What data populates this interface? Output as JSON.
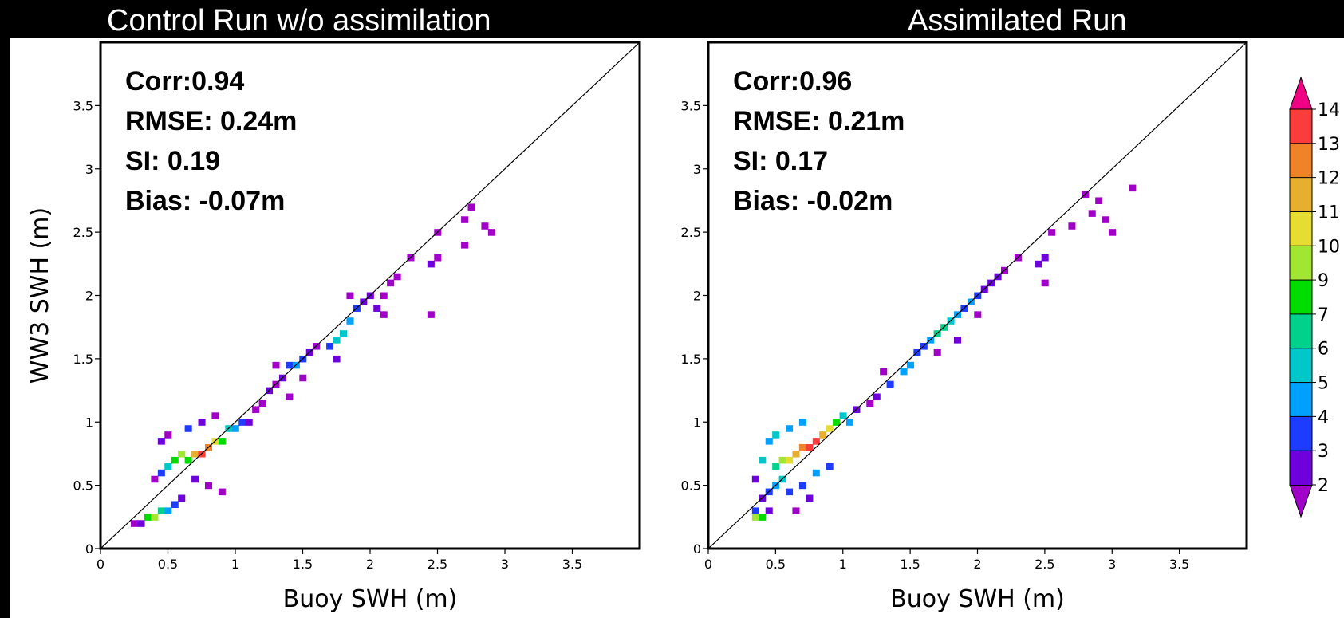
{
  "chart_data": [
    {
      "type": "heatmap",
      "title": "Control Run w/o assimilation",
      "xlabel": "Buoy SWH (m)",
      "ylabel": "WW3 SWH (m)",
      "xlim": [
        0,
        4
      ],
      "ylim": [
        0,
        4
      ],
      "xticks": [
        "0",
        "0.5",
        "1",
        "1.5",
        "2",
        "2.5",
        "3",
        "3.5"
      ],
      "yticks": [
        "0",
        "0.5",
        "1",
        "1.5",
        "2",
        "2.5",
        "3",
        "3.5"
      ],
      "reference_line": "1:1",
      "stats": [
        "Corr:0.94",
        "RMSE: 0.24m",
        "SI: 0.19",
        "Bias: -0.07m"
      ],
      "density_points": [
        {
          "x": 0.25,
          "y": 0.2,
          "count": 2
        },
        {
          "x": 0.3,
          "y": 0.2,
          "count": 3
        },
        {
          "x": 0.35,
          "y": 0.25,
          "count": 9
        },
        {
          "x": 0.4,
          "y": 0.25,
          "count": 10
        },
        {
          "x": 0.45,
          "y": 0.3,
          "count": 8
        },
        {
          "x": 0.5,
          "y": 0.3,
          "count": 5
        },
        {
          "x": 0.55,
          "y": 0.35,
          "count": 4
        },
        {
          "x": 0.6,
          "y": 0.4,
          "count": 3
        },
        {
          "x": 0.4,
          "y": 0.55,
          "count": 2
        },
        {
          "x": 0.45,
          "y": 0.6,
          "count": 4
        },
        {
          "x": 0.5,
          "y": 0.65,
          "count": 6
        },
        {
          "x": 0.55,
          "y": 0.7,
          "count": 9
        },
        {
          "x": 0.6,
          "y": 0.75,
          "count": 10
        },
        {
          "x": 0.65,
          "y": 0.7,
          "count": 9
        },
        {
          "x": 0.7,
          "y": 0.75,
          "count": 12
        },
        {
          "x": 0.75,
          "y": 0.75,
          "count": 14
        },
        {
          "x": 0.8,
          "y": 0.8,
          "count": 13
        },
        {
          "x": 0.85,
          "y": 0.85,
          "count": 11
        },
        {
          "x": 0.9,
          "y": 0.85,
          "count": 9
        },
        {
          "x": 0.95,
          "y": 0.95,
          "count": 6
        },
        {
          "x": 1.0,
          "y": 0.95,
          "count": 5
        },
        {
          "x": 1.05,
          "y": 1.0,
          "count": 4
        },
        {
          "x": 1.1,
          "y": 1.0,
          "count": 3
        },
        {
          "x": 1.15,
          "y": 1.1,
          "count": 2
        },
        {
          "x": 0.45,
          "y": 0.85,
          "count": 3
        },
        {
          "x": 0.5,
          "y": 0.9,
          "count": 2
        },
        {
          "x": 0.65,
          "y": 0.95,
          "count": 4
        },
        {
          "x": 0.75,
          "y": 1.0,
          "count": 3
        },
        {
          "x": 0.85,
          "y": 1.05,
          "count": 2
        },
        {
          "x": 0.7,
          "y": 0.55,
          "count": 3
        },
        {
          "x": 0.8,
          "y": 0.5,
          "count": 2
        },
        {
          "x": 0.9,
          "y": 0.45,
          "count": 2
        },
        {
          "x": 1.2,
          "y": 1.15,
          "count": 2
        },
        {
          "x": 1.25,
          "y": 1.25,
          "count": 3
        },
        {
          "x": 1.3,
          "y": 1.3,
          "count": 2
        },
        {
          "x": 1.35,
          "y": 1.35,
          "count": 3
        },
        {
          "x": 1.4,
          "y": 1.45,
          "count": 4
        },
        {
          "x": 1.45,
          "y": 1.45,
          "count": 5
        },
        {
          "x": 1.5,
          "y": 1.5,
          "count": 4
        },
        {
          "x": 1.55,
          "y": 1.55,
          "count": 3
        },
        {
          "x": 1.5,
          "y": 1.35,
          "count": 2
        },
        {
          "x": 1.6,
          "y": 1.6,
          "count": 2
        },
        {
          "x": 1.3,
          "y": 1.45,
          "count": 2
        },
        {
          "x": 1.4,
          "y": 1.2,
          "count": 2
        },
        {
          "x": 1.7,
          "y": 1.6,
          "count": 4
        },
        {
          "x": 1.75,
          "y": 1.65,
          "count": 6
        },
        {
          "x": 1.8,
          "y": 1.7,
          "count": 6
        },
        {
          "x": 1.85,
          "y": 1.8,
          "count": 5
        },
        {
          "x": 1.9,
          "y": 1.9,
          "count": 4
        },
        {
          "x": 1.95,
          "y": 1.95,
          "count": 3
        },
        {
          "x": 2.0,
          "y": 2.0,
          "count": 3
        },
        {
          "x": 1.75,
          "y": 1.5,
          "count": 3
        },
        {
          "x": 2.05,
          "y": 1.9,
          "count": 3
        },
        {
          "x": 2.1,
          "y": 2.0,
          "count": 2
        },
        {
          "x": 2.15,
          "y": 2.1,
          "count": 2
        },
        {
          "x": 2.2,
          "y": 2.15,
          "count": 2
        },
        {
          "x": 2.1,
          "y": 1.85,
          "count": 2
        },
        {
          "x": 1.85,
          "y": 2.0,
          "count": 2
        },
        {
          "x": 2.45,
          "y": 1.85,
          "count": 2
        },
        {
          "x": 2.3,
          "y": 2.3,
          "count": 2
        },
        {
          "x": 2.45,
          "y": 2.25,
          "count": 3
        },
        {
          "x": 2.5,
          "y": 2.3,
          "count": 2
        },
        {
          "x": 2.5,
          "y": 2.5,
          "count": 2
        },
        {
          "x": 2.7,
          "y": 2.6,
          "count": 2
        },
        {
          "x": 2.75,
          "y": 2.7,
          "count": 2
        },
        {
          "x": 2.85,
          "y": 2.55,
          "count": 2
        },
        {
          "x": 2.9,
          "y": 2.5,
          "count": 2
        },
        {
          "x": 2.7,
          "y": 2.4,
          "count": 2
        }
      ]
    },
    {
      "type": "heatmap",
      "title": "Assimilated Run",
      "xlabel": "Buoy SWH (m)",
      "ylabel": "",
      "xlim": [
        0,
        4
      ],
      "ylim": [
        0,
        4
      ],
      "xticks": [
        "0",
        "0.5",
        "1",
        "1.5",
        "2",
        "2.5",
        "3",
        "3.5"
      ],
      "yticks": [
        "0",
        "0.5",
        "1",
        "1.5",
        "2",
        "2.5",
        "3",
        "3.5"
      ],
      "reference_line": "1:1",
      "stats": [
        "Corr:0.96",
        "RMSE: 0.21m",
        "SI: 0.17",
        "Bias: -0.02m"
      ],
      "density_points": [
        {
          "x": 0.35,
          "y": 0.25,
          "count": 10
        },
        {
          "x": 0.4,
          "y": 0.25,
          "count": 9
        },
        {
          "x": 0.35,
          "y": 0.3,
          "count": 4
        },
        {
          "x": 0.45,
          "y": 0.3,
          "count": 3
        },
        {
          "x": 0.4,
          "y": 0.4,
          "count": 3
        },
        {
          "x": 0.45,
          "y": 0.45,
          "count": 4
        },
        {
          "x": 0.5,
          "y": 0.5,
          "count": 5
        },
        {
          "x": 0.55,
          "y": 0.55,
          "count": 6
        },
        {
          "x": 0.5,
          "y": 0.65,
          "count": 8
        },
        {
          "x": 0.55,
          "y": 0.7,
          "count": 10
        },
        {
          "x": 0.6,
          "y": 0.7,
          "count": 11
        },
        {
          "x": 0.65,
          "y": 0.75,
          "count": 12
        },
        {
          "x": 0.7,
          "y": 0.8,
          "count": 13
        },
        {
          "x": 0.75,
          "y": 0.8,
          "count": 14
        },
        {
          "x": 0.8,
          "y": 0.85,
          "count": 14
        },
        {
          "x": 0.85,
          "y": 0.9,
          "count": 12
        },
        {
          "x": 0.9,
          "y": 0.95,
          "count": 11
        },
        {
          "x": 0.95,
          "y": 1.0,
          "count": 9
        },
        {
          "x": 1.0,
          "y": 1.05,
          "count": 6
        },
        {
          "x": 1.05,
          "y": 1.0,
          "count": 5
        },
        {
          "x": 0.45,
          "y": 0.85,
          "count": 5
        },
        {
          "x": 0.5,
          "y": 0.9,
          "count": 6
        },
        {
          "x": 0.6,
          "y": 0.95,
          "count": 5
        },
        {
          "x": 0.7,
          "y": 1.0,
          "count": 5
        },
        {
          "x": 0.4,
          "y": 0.7,
          "count": 6
        },
        {
          "x": 0.35,
          "y": 0.55,
          "count": 3
        },
        {
          "x": 0.6,
          "y": 0.45,
          "count": 4
        },
        {
          "x": 0.7,
          "y": 0.5,
          "count": 4
        },
        {
          "x": 0.8,
          "y": 0.6,
          "count": 5
        },
        {
          "x": 0.9,
          "y": 0.65,
          "count": 4
        },
        {
          "x": 0.75,
          "y": 0.4,
          "count": 3
        },
        {
          "x": 0.65,
          "y": 0.3,
          "count": 2
        },
        {
          "x": 1.1,
          "y": 1.1,
          "count": 3
        },
        {
          "x": 1.2,
          "y": 1.15,
          "count": 2
        },
        {
          "x": 1.25,
          "y": 1.2,
          "count": 3
        },
        {
          "x": 1.35,
          "y": 1.3,
          "count": 4
        },
        {
          "x": 1.45,
          "y": 1.4,
          "count": 5
        },
        {
          "x": 1.5,
          "y": 1.45,
          "count": 5
        },
        {
          "x": 1.55,
          "y": 1.55,
          "count": 4
        },
        {
          "x": 1.3,
          "y": 1.4,
          "count": 2
        },
        {
          "x": 1.6,
          "y": 1.6,
          "count": 4
        },
        {
          "x": 1.65,
          "y": 1.65,
          "count": 5
        },
        {
          "x": 1.7,
          "y": 1.7,
          "count": 7
        },
        {
          "x": 1.75,
          "y": 1.75,
          "count": 8
        },
        {
          "x": 1.8,
          "y": 1.8,
          "count": 6
        },
        {
          "x": 1.85,
          "y": 1.85,
          "count": 5
        },
        {
          "x": 1.9,
          "y": 1.9,
          "count": 4
        },
        {
          "x": 1.95,
          "y": 1.95,
          "count": 5
        },
        {
          "x": 2.0,
          "y": 2.0,
          "count": 4
        },
        {
          "x": 2.05,
          "y": 2.05,
          "count": 3
        },
        {
          "x": 2.1,
          "y": 2.1,
          "count": 3
        },
        {
          "x": 2.15,
          "y": 2.15,
          "count": 3
        },
        {
          "x": 2.2,
          "y": 2.2,
          "count": 2
        },
        {
          "x": 1.85,
          "y": 1.65,
          "count": 3
        },
        {
          "x": 2.0,
          "y": 1.85,
          "count": 2
        },
        {
          "x": 1.7,
          "y": 1.55,
          "count": 2
        },
        {
          "x": 2.3,
          "y": 2.3,
          "count": 2
        },
        {
          "x": 2.45,
          "y": 2.25,
          "count": 3
        },
        {
          "x": 2.5,
          "y": 2.3,
          "count": 3
        },
        {
          "x": 2.55,
          "y": 2.5,
          "count": 2
        },
        {
          "x": 2.5,
          "y": 2.1,
          "count": 2
        },
        {
          "x": 2.7,
          "y": 2.55,
          "count": 2
        },
        {
          "x": 2.8,
          "y": 2.8,
          "count": 2
        },
        {
          "x": 2.9,
          "y": 2.75,
          "count": 2
        },
        {
          "x": 3.15,
          "y": 2.85,
          "count": 2
        },
        {
          "x": 2.95,
          "y": 2.6,
          "count": 2
        },
        {
          "x": 2.85,
          "y": 2.65,
          "count": 2
        },
        {
          "x": 3.0,
          "y": 2.5,
          "count": 2
        }
      ]
    }
  ],
  "colorbar": {
    "labels": [
      "2",
      "3",
      "4",
      "5",
      "6",
      "7",
      "9",
      "10",
      "11",
      "12",
      "13",
      "14"
    ],
    "colors": [
      "#a000c8",
      "#6e00dc",
      "#1e3cff",
      "#00a0ff",
      "#00c8c8",
      "#00d28c",
      "#00dc00",
      "#a0e632",
      "#e6dc32",
      "#e6af2d",
      "#f08228",
      "#fa3c3c",
      "#f00082"
    ]
  }
}
